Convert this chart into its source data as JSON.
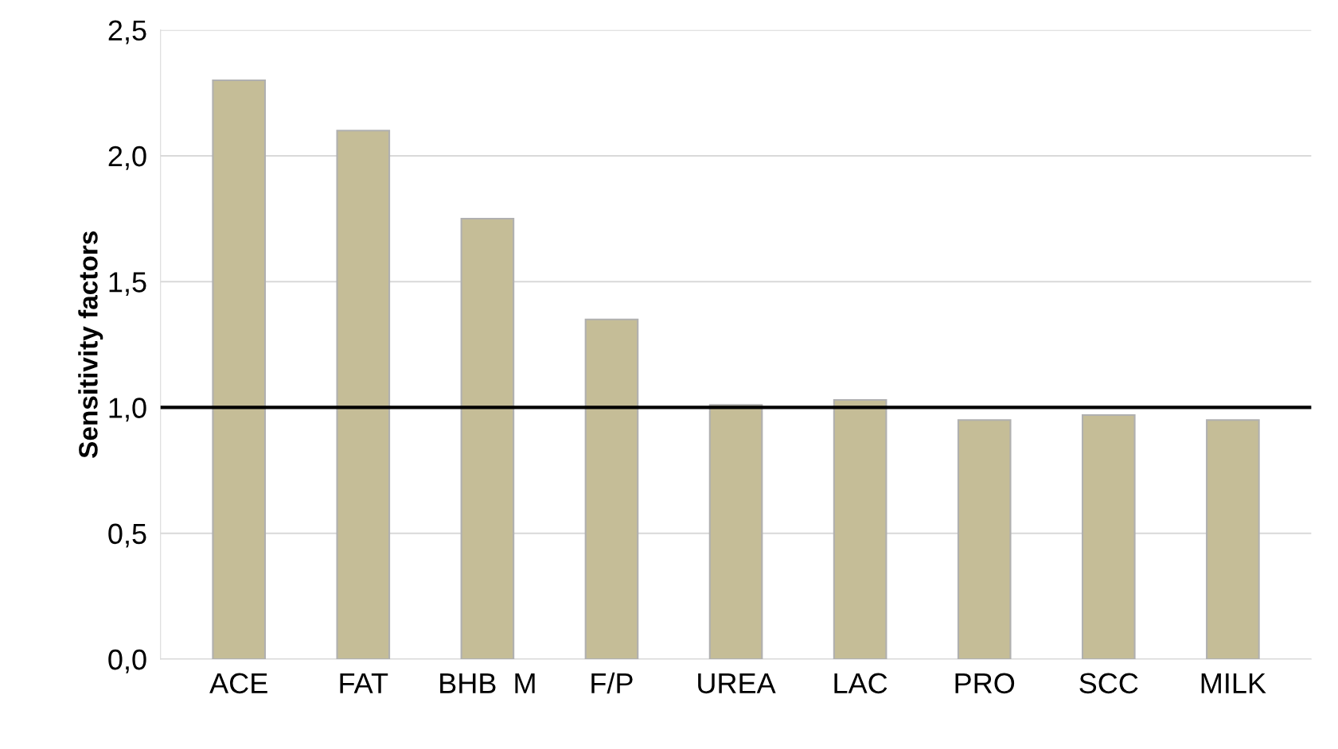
{
  "chart_data": {
    "type": "bar",
    "ylabel": "Sensitivity factors",
    "categories": [
      "ACE",
      "FAT",
      "BHB  M",
      "F/P",
      "UREA",
      "LAC",
      "PRO",
      "SCC",
      "MILK"
    ],
    "values": [
      2.3,
      2.1,
      1.75,
      1.35,
      1.01,
      1.03,
      0.95,
      0.97,
      0.95
    ],
    "color": "#c5bd97",
    "ylim": [
      0,
      2.5
    ],
    "yticks": [
      {
        "value": 0,
        "label": "0,0"
      },
      {
        "value": 0.5,
        "label": "0,5"
      },
      {
        "value": 1,
        "label": "1,0"
      },
      {
        "value": 1.5,
        "label": "1,5"
      },
      {
        "value": 2,
        "label": "2,0"
      },
      {
        "value": 2.5,
        "label": "2,5"
      }
    ],
    "grid": "y",
    "ref_lines": [
      {
        "axis": "y",
        "value": 1,
        "color": "#000000",
        "line_style": "solid"
      }
    ]
  }
}
